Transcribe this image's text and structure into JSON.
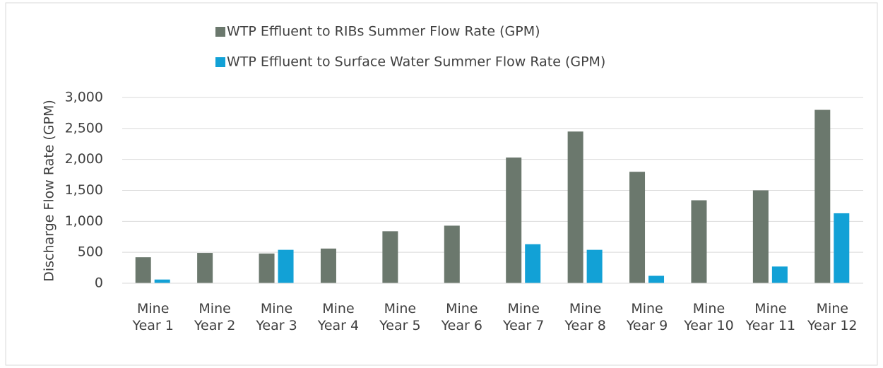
{
  "chart_data": {
    "type": "bar",
    "y_label": "Discharge Flow Rate (GPM)",
    "categories": [
      "Mine Year 1",
      "Mine Year 2",
      "Mine Year 3",
      "Mine Year 4",
      "Mine Year 5",
      "Mine Year 6",
      "Mine Year 7",
      "Mine Year 8",
      "Mine Year 9",
      "Mine Year 10",
      "Mine Year 11",
      "Mine Year 12"
    ],
    "series": [
      {
        "name": "WTP Effluent to RIBs Summer Flow Rate (GPM)",
        "color": "#6b786d",
        "values": [
          420,
          490,
          480,
          560,
          840,
          930,
          2030,
          2450,
          1800,
          1340,
          1500,
          2800
        ]
      },
      {
        "name": "WTP Effluent to Surface Water Summer Flow Rate (GPM)",
        "color": "#12a1d6",
        "values": [
          60,
          0,
          540,
          0,
          0,
          0,
          630,
          540,
          120,
          0,
          270,
          1130
        ]
      }
    ],
    "ylim": [
      0,
      3000
    ],
    "yticks": [
      0,
      500,
      {
        "value": 1000,
        "label": "1,000"
      },
      {
        "value": 1500,
        "label": "1,500"
      },
      {
        "value": 2000,
        "label": "2,000"
      },
      {
        "value": 2500,
        "label": "2,500"
      },
      {
        "value": 3000,
        "label": "3,000"
      }
    ],
    "grid": true
  }
}
